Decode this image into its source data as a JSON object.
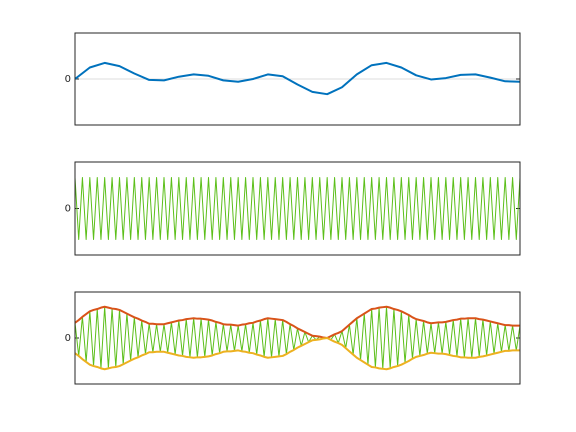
{
  "chart_data": [
    {
      "type": "line",
      "xlim": [
        0,
        120
      ],
      "ylim": [
        -1,
        1
      ],
      "yticks": [
        0
      ],
      "grid": true,
      "x": [
        0,
        4,
        8,
        12,
        16,
        20,
        24,
        28,
        32,
        36,
        40,
        44,
        48,
        52,
        56,
        60,
        64,
        68,
        72,
        76,
        80,
        84,
        88,
        92,
        96,
        100,
        104,
        108,
        112,
        116,
        120
      ],
      "series": [
        {
          "color": "#0072bd",
          "values": [
            0,
            0.25,
            0.35,
            0.28,
            0.12,
            -0.02,
            -0.03,
            0.05,
            0.1,
            0.07,
            -0.03,
            -0.06,
            0,
            0.1,
            0.06,
            -0.12,
            -0.28,
            -0.33,
            -0.18,
            0.1,
            0.3,
            0.35,
            0.25,
            0.08,
            -0.01,
            0.02,
            0.09,
            0.1,
            0.03,
            -0.05,
            -0.06
          ]
        }
      ]
    },
    {
      "type": "line",
      "xlim": [
        0,
        120
      ],
      "ylim": [
        -1.5,
        1.5
      ],
      "yticks": [
        0
      ],
      "grid": false,
      "x": [
        0,
        1,
        2,
        3,
        4,
        5,
        6,
        7,
        8,
        9,
        10,
        11,
        12,
        13,
        14,
        15,
        16,
        17,
        18,
        19,
        20,
        21,
        22,
        23,
        24,
        25,
        26,
        27,
        28,
        29,
        30,
        31,
        32,
        33,
        34,
        35,
        36,
        37,
        38,
        39,
        40,
        41,
        42,
        43,
        44,
        45,
        46,
        47,
        48,
        49,
        50,
        51,
        52,
        53,
        54,
        55,
        56,
        57,
        58,
        59,
        60,
        61,
        62,
        63,
        64,
        65,
        66,
        67,
        68,
        69,
        70,
        71,
        72,
        73,
        74,
        75,
        76,
        77,
        78,
        79,
        80,
        81,
        82,
        83,
        84,
        85,
        86,
        87,
        88,
        89,
        90,
        91,
        92,
        93,
        94,
        95,
        96,
        97,
        98,
        99,
        100,
        101,
        102,
        103,
        104,
        105,
        106,
        107,
        108,
        109,
        110,
        111,
        112,
        113,
        114,
        115,
        116,
        117,
        118,
        119,
        120
      ],
      "series": [
        {
          "color": "#5cbf1a",
          "values": [
            1,
            -1,
            1,
            -1,
            1,
            -1,
            1,
            -1,
            1,
            -1,
            1,
            -1,
            1,
            -1,
            1,
            -1,
            1,
            -1,
            1,
            -1,
            1,
            -1,
            1,
            -1,
            1,
            -1,
            1,
            -1,
            1,
            -1,
            1,
            -1,
            1,
            -1,
            1,
            -1,
            1,
            -1,
            1,
            -1,
            1,
            -1,
            1,
            -1,
            1,
            -1,
            1,
            -1,
            1,
            -1,
            1,
            -1,
            1,
            -1,
            1,
            -1,
            1,
            -1,
            1,
            -1,
            1,
            -1,
            1,
            -1,
            1,
            -1,
            1,
            -1,
            1,
            -1,
            1,
            -1,
            1,
            -1,
            1,
            -1,
            1,
            -1,
            1,
            -1,
            1,
            -1,
            1,
            -1,
            1,
            -1,
            1,
            -1,
            1,
            -1,
            1,
            -1,
            1,
            -1,
            1,
            -1,
            1,
            -1,
            1,
            -1,
            1,
            -1,
            1,
            -1,
            1,
            -1,
            1,
            -1,
            1,
            -1,
            1,
            -1,
            1,
            -1,
            1,
            -1,
            1,
            -1,
            1,
            -1,
            1
          ]
        }
      ]
    },
    {
      "type": "line",
      "xlim": [
        0,
        120
      ],
      "ylim": [
        -1,
        1
      ],
      "yticks": [
        0
      ],
      "grid": false,
      "x": [
        0,
        1,
        2,
        3,
        4,
        5,
        6,
        7,
        8,
        9,
        10,
        11,
        12,
        13,
        14,
        15,
        16,
        17,
        18,
        19,
        20,
        21,
        22,
        23,
        24,
        25,
        26,
        27,
        28,
        29,
        30,
        31,
        32,
        33,
        34,
        35,
        36,
        37,
        38,
        39,
        40,
        41,
        42,
        43,
        44,
        45,
        46,
        47,
        48,
        49,
        50,
        51,
        52,
        53,
        54,
        55,
        56,
        57,
        58,
        59,
        60,
        61,
        62,
        63,
        64,
        65,
        66,
        67,
        68,
        69,
        70,
        71,
        72,
        73,
        74,
        75,
        76,
        77,
        78,
        79,
        80,
        81,
        82,
        83,
        84,
        85,
        86,
        87,
        88,
        89,
        90,
        91,
        92,
        93,
        94,
        95,
        96,
        97,
        98,
        99,
        100,
        101,
        102,
        103,
        104,
        105,
        106,
        107,
        108,
        109,
        110,
        111,
        112,
        113,
        114,
        115,
        116,
        117,
        118,
        119,
        120
      ],
      "series": [
        {
          "color": "#5cbf1a",
          "values": [
            0.33,
            -0.39,
            0.46,
            -0.52,
            0.58,
            -0.61,
            0.63,
            -0.66,
            0.68,
            -0.66,
            0.64,
            -0.63,
            0.61,
            -0.57,
            0.53,
            -0.49,
            0.45,
            -0.42,
            0.38,
            -0.35,
            0.31,
            -0.31,
            0.3,
            -0.3,
            0.3,
            -0.32,
            0.34,
            -0.36,
            0.38,
            -0.39,
            0.41,
            -0.42,
            0.43,
            -0.42,
            0.42,
            -0.41,
            0.4,
            -0.38,
            0.35,
            -0.33,
            0.3,
            -0.29,
            0.29,
            -0.28,
            0.27,
            -0.29,
            0.3,
            -0.32,
            0.33,
            -0.36,
            0.38,
            -0.41,
            0.43,
            -0.42,
            0.41,
            -0.4,
            0.39,
            -0.35,
            0.3,
            -0.26,
            0.21,
            -0.17,
            0.13,
            -0.09,
            0.05,
            -0.04,
            0.03,
            -0.01,
            0,
            -0.04,
            0.08,
            -0.11,
            0.15,
            -0.22,
            0.29,
            -0.36,
            0.43,
            -0.48,
            0.53,
            -0.58,
            0.63,
            -0.64,
            0.66,
            -0.67,
            0.68,
            -0.66,
            0.63,
            -0.61,
            0.58,
            -0.54,
            0.5,
            -0.45,
            0.41,
            -0.39,
            0.37,
            -0.34,
            0.32,
            -0.33,
            0.34,
            -0.34,
            0.35,
            -0.37,
            0.39,
            -0.4,
            0.42,
            -0.42,
            0.43,
            -0.43,
            0.43,
            -0.41,
            0.4,
            -0.38,
            0.36,
            -0.34,
            0.32,
            -0.3,
            0.28,
            -0.28,
            0.27,
            -0.27,
            0.27
          ]
        },
        {
          "color": "#d95319",
          "values": [
            0.33,
            0.39,
            0.46,
            0.52,
            0.58,
            0.61,
            0.63,
            0.66,
            0.68,
            0.66,
            0.64,
            0.63,
            0.61,
            0.57,
            0.53,
            0.49,
            0.45,
            0.42,
            0.38,
            0.35,
            0.31,
            0.31,
            0.3,
            0.3,
            0.3,
            0.32,
            0.34,
            0.36,
            0.38,
            0.39,
            0.41,
            0.42,
            0.43,
            0.42,
            0.42,
            0.41,
            0.4,
            0.38,
            0.35,
            0.33,
            0.3,
            0.29,
            0.29,
            0.28,
            0.27,
            0.29,
            0.3,
            0.32,
            0.33,
            0.36,
            0.38,
            0.41,
            0.43,
            0.42,
            0.41,
            0.4,
            0.39,
            0.35,
            0.3,
            0.26,
            0.21,
            0.17,
            0.13,
            0.09,
            0.05,
            0.04,
            0.03,
            0.01,
            0,
            0.04,
            0.08,
            0.11,
            0.15,
            0.22,
            0.29,
            0.36,
            0.43,
            0.48,
            0.53,
            0.58,
            0.63,
            0.64,
            0.66,
            0.67,
            0.68,
            0.66,
            0.63,
            0.61,
            0.58,
            0.54,
            0.5,
            0.45,
            0.41,
            0.39,
            0.37,
            0.34,
            0.32,
            0.33,
            0.34,
            0.34,
            0.35,
            0.37,
            0.39,
            0.4,
            0.42,
            0.42,
            0.43,
            0.43,
            0.43,
            0.41,
            0.4,
            0.38,
            0.36,
            0.34,
            0.32,
            0.3,
            0.28,
            0.28,
            0.27,
            0.27,
            0.27
          ]
        },
        {
          "color": "#edb120",
          "values": [
            -0.33,
            -0.39,
            -0.46,
            -0.52,
            -0.58,
            -0.61,
            -0.63,
            -0.66,
            -0.68,
            -0.66,
            -0.64,
            -0.63,
            -0.61,
            -0.57,
            -0.53,
            -0.49,
            -0.45,
            -0.42,
            -0.38,
            -0.35,
            -0.31,
            -0.31,
            -0.3,
            -0.3,
            -0.3,
            -0.32,
            -0.34,
            -0.36,
            -0.38,
            -0.39,
            -0.41,
            -0.42,
            -0.43,
            -0.42,
            -0.42,
            -0.41,
            -0.4,
            -0.38,
            -0.35,
            -0.33,
            -0.3,
            -0.29,
            -0.29,
            -0.28,
            -0.27,
            -0.29,
            -0.3,
            -0.32,
            -0.33,
            -0.36,
            -0.38,
            -0.41,
            -0.43,
            -0.42,
            -0.41,
            -0.4,
            -0.39,
            -0.35,
            -0.3,
            -0.26,
            -0.21,
            -0.17,
            -0.13,
            -0.09,
            -0.05,
            -0.04,
            -0.03,
            -0.01,
            0,
            -0.04,
            -0.08,
            -0.11,
            -0.15,
            -0.22,
            -0.29,
            -0.36,
            -0.43,
            -0.48,
            -0.53,
            -0.58,
            -0.63,
            -0.64,
            -0.66,
            -0.67,
            -0.68,
            -0.66,
            -0.63,
            -0.61,
            -0.58,
            -0.54,
            -0.5,
            -0.45,
            -0.41,
            -0.39,
            -0.37,
            -0.34,
            -0.32,
            -0.33,
            -0.34,
            -0.34,
            -0.35,
            -0.37,
            -0.39,
            -0.4,
            -0.42,
            -0.42,
            -0.43,
            -0.43,
            -0.43,
            -0.41,
            -0.4,
            -0.38,
            -0.36,
            -0.34,
            -0.32,
            -0.3,
            -0.28,
            -0.28,
            -0.27,
            -0.27,
            -0.27
          ]
        }
      ]
    }
  ]
}
